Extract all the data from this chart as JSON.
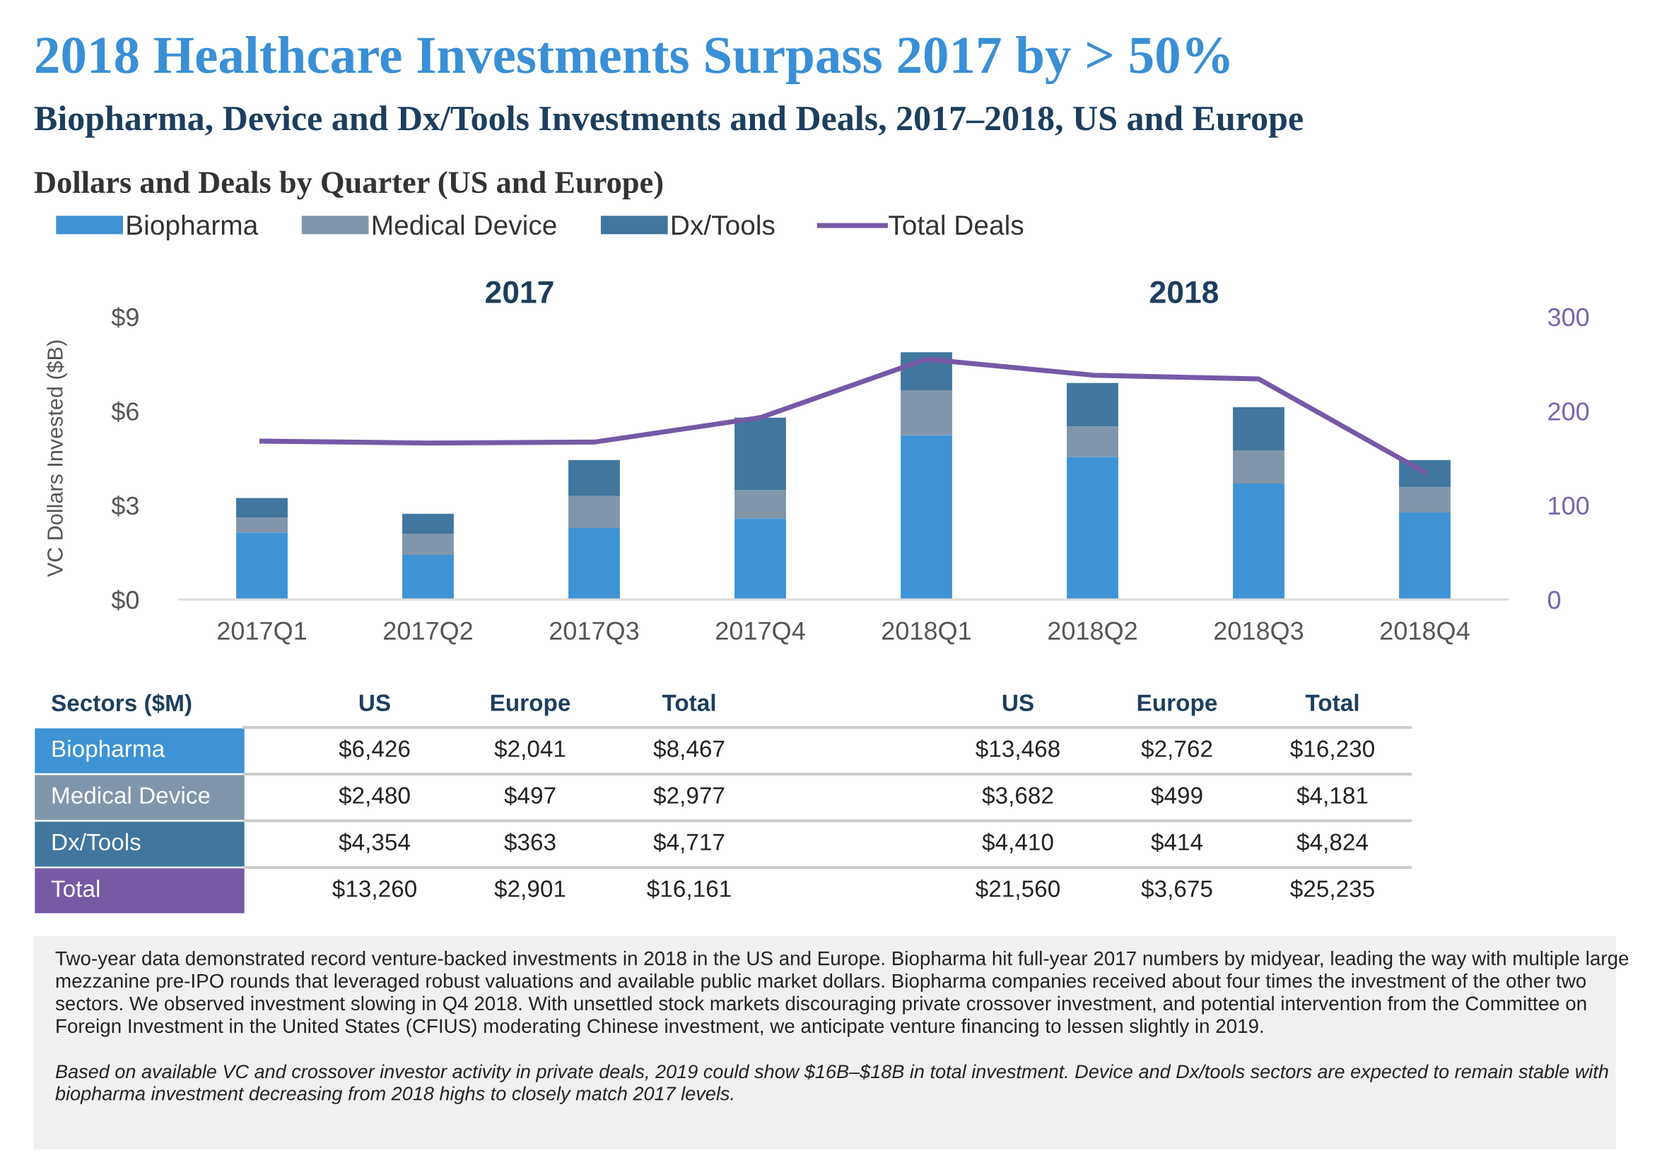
{
  "chart_data": [
    {
      "type": "bar",
      "title": "2018 Healthcare Investments Surpass 2017 by > 50%",
      "subtitle": "Biopharma, Device and Dx/Tools Investments and Deals, 2017–2018, US and Europe",
      "ylabel": "VC Dollars Invested ($B)",
      "categories": [
        "2017Q1",
        "2017Q2",
        "2017Q3",
        "2017Q4",
        "2018Q1",
        "2018Q2",
        "2018Q3",
        "2018Q4"
      ],
      "stacked": true,
      "series": [
        {
          "name": "Biopharma",
          "color": "#3f93d4",
          "values": [
            2.13,
            1.42,
            2.27,
            2.58,
            5.23,
            4.54,
            3.69,
            2.77
          ]
        },
        {
          "name": "Medical Device",
          "color": "#8196ab",
          "values": [
            0.47,
            0.66,
            1.02,
            0.9,
            1.43,
            0.96,
            1.06,
            0.8
          ]
        },
        {
          "name": "Dx/Tools",
          "color": "#41769e",
          "values": [
            0.63,
            0.65,
            1.15,
            2.31,
            1.21,
            1.39,
            1.37,
            0.87
          ]
        },
        {
          "name": "Total Deals",
          "type": "line",
          "axis": "y2",
          "color": "#7559a5",
          "values": [
            168,
            166,
            167,
            193,
            255,
            238,
            234,
            135
          ]
        }
      ],
      "ylim": [
        0,
        9
      ],
      "yticks": [
        {
          "value": 0,
          "label": "$0"
        },
        {
          "value": 3,
          "label": "$3"
        },
        {
          "value": 6,
          "label": "$6"
        },
        {
          "value": 9,
          "label": "$9"
        }
      ],
      "y2lim": [
        0,
        300
      ],
      "y2ticks": [
        0,
        100,
        200,
        300
      ],
      "grid": false,
      "legend": "top left",
      "marker": "none",
      "annotations": [
        "Dollars and Deals by Quarter (US and Europe)",
        "2017",
        "2018",
        "Two-year data demonstrated record venture-backed investments in 2018 in the US and Europe. Biopharma hit full-year 2017 numbers by midyear, leading the way with multiple large mezzanine pre-IPO rounds that leveraged robust valuations and available public market dollars. Biopharma companies received about four times the investment of the other two sectors. We observed investment slowing in Q4 2018. With unsettled stock markets discouraging private crossover investment, and potential intervention from the Committee on Foreign Investment in the United States (CFIUS) moderating Chinese investment, we anticipate venture financing to lessen slightly in 2019.",
        "Based on available VC and crossover investor activity in private deals, 2019 could show $16B–$18B in total investment. Device and Dx/tools sectors are expected to remain stable with biopharma investment decreasing from 2018 highs to closely match 2017 levels."
      ]
    },
    {
      "type": "other",
      "title": "Sectors ($M)",
      "categories": [
        "US",
        "Europe",
        "Total",
        "US",
        "Europe",
        "Total"
      ],
      "y_categories": [
        "Biopharma",
        "Medical Device",
        "Dx/Tools",
        "Total"
      ],
      "colors": [
        "#3f93d4",
        "#8196ab",
        "#41769e",
        "#7559a5"
      ],
      "cell_labels": [
        [
          "$6,426",
          "$2,041",
          "$8,467",
          "$13,468",
          "$2,762",
          "$16,230"
        ],
        [
          "$2,480",
          "$497",
          "$2,977",
          "$3,682",
          "$499",
          "$4,181"
        ],
        [
          "$4,354",
          "$363",
          "$4,717",
          "$4,410",
          "$414",
          "$4,824"
        ],
        [
          "$13,260",
          "$2,901",
          "$16,161",
          "$21,560",
          "$3,675",
          "$25,235"
        ]
      ]
    }
  ]
}
